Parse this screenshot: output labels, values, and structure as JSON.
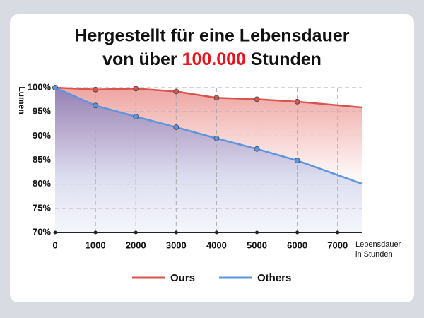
{
  "chart_data": {
    "type": "line",
    "title_parts": [
      "Hergestellt für eine Lebensdauer",
      "von über",
      "100.000",
      "Stunden"
    ],
    "highlight_color": "#e8141b",
    "ylabel": "Lumen",
    "xlabel": [
      "Lebensdauer",
      "in Stunden"
    ],
    "x": [
      0,
      1000,
      2000,
      3000,
      4000,
      5000,
      6000,
      7600
    ],
    "series": [
      {
        "name": "Ours",
        "color": "#d9534f",
        "values": [
          100,
          99.6,
          99.8,
          99.2,
          97.9,
          97.6,
          97.1,
          95.9
        ]
      },
      {
        "name": "Others",
        "color": "#5b95e0",
        "values": [
          100,
          96.3,
          94.0,
          91.8,
          89.5,
          87.3,
          84.9,
          80.1
        ]
      }
    ],
    "xlim": [
      0,
      7600
    ],
    "xticks": [
      0,
      1000,
      2000,
      3000,
      4000,
      5000,
      6000,
      7000
    ],
    "ylim": [
      70,
      100
    ],
    "yticks": [
      {
        "value": 70,
        "label": "70%"
      },
      {
        "value": 75,
        "label": "75%"
      },
      {
        "value": 80,
        "label": "80%"
      },
      {
        "value": 85,
        "label": "85%"
      },
      {
        "value": 90,
        "label": "90%"
      },
      {
        "value": 95,
        "label": "95%"
      },
      {
        "value": 100,
        "label": "100%"
      }
    ],
    "grid": true
  }
}
